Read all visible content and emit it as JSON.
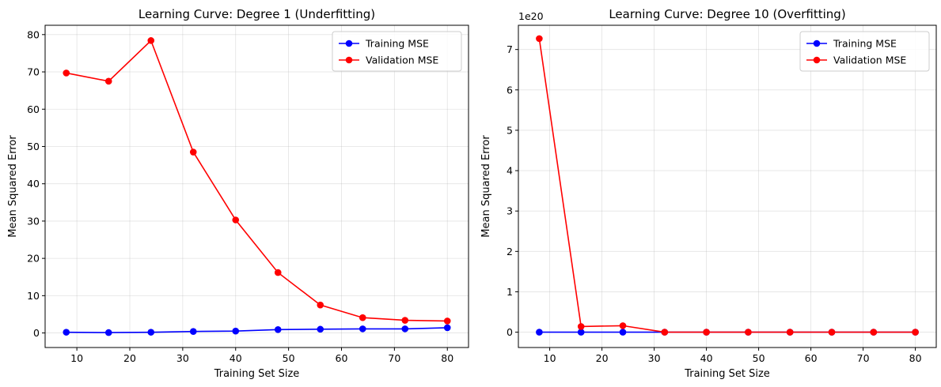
{
  "chart_data": [
    {
      "type": "line",
      "title": "Learning Curve: Degree 1 (Underfitting)",
      "xlabel": "Training Set Size",
      "ylabel": "Mean Squared Error",
      "xlim": [
        4,
        84
      ],
      "ylim": [
        -3.9,
        82.5
      ],
      "xticks": [
        10,
        20,
        30,
        40,
        50,
        60,
        70,
        80
      ],
      "yticks": [
        0,
        10,
        20,
        30,
        40,
        50,
        60,
        70,
        80
      ],
      "offset_text": "",
      "grid": true,
      "legend_position": "upper right",
      "x": [
        8,
        16,
        24,
        32,
        40,
        48,
        56,
        64,
        72,
        80
      ],
      "series": [
        {
          "name": "Training MSE",
          "color": "#0000ff",
          "marker": "circle",
          "values": [
            0.2,
            0.1,
            0.2,
            0.4,
            0.5,
            0.9,
            1.0,
            1.1,
            1.1,
            1.4
          ]
        },
        {
          "name": "Validation MSE",
          "color": "#ff0000",
          "marker": "circle",
          "values": [
            69.7,
            67.5,
            78.4,
            48.5,
            30.3,
            16.2,
            7.5,
            4.1,
            3.4,
            3.2
          ]
        }
      ]
    },
    {
      "type": "line",
      "title": "Learning Curve: Degree 10 (Overfitting)",
      "xlabel": "Training Set Size",
      "ylabel": "Mean Squared Error",
      "xlim": [
        4,
        84
      ],
      "ylim": [
        -0.38,
        7.6
      ],
      "xticks": [
        10,
        20,
        30,
        40,
        50,
        60,
        70,
        80
      ],
      "yticks": [
        0,
        1,
        2,
        3,
        4,
        5,
        6,
        7
      ],
      "offset_text": "1e20",
      "grid": true,
      "legend_position": "upper right",
      "x": [
        8,
        16,
        24,
        32,
        40,
        48,
        56,
        64,
        72,
        80
      ],
      "series": [
        {
          "name": "Training MSE",
          "color": "#0000ff",
          "marker": "circle",
          "values": [
            0,
            0,
            0,
            0,
            0,
            0,
            0,
            0,
            0,
            0
          ]
        },
        {
          "name": "Validation MSE",
          "color": "#ff0000",
          "marker": "circle",
          "values": [
            7.27,
            0.14,
            0.16,
            0,
            0,
            0,
            0,
            0,
            0,
            0
          ]
        }
      ]
    }
  ]
}
